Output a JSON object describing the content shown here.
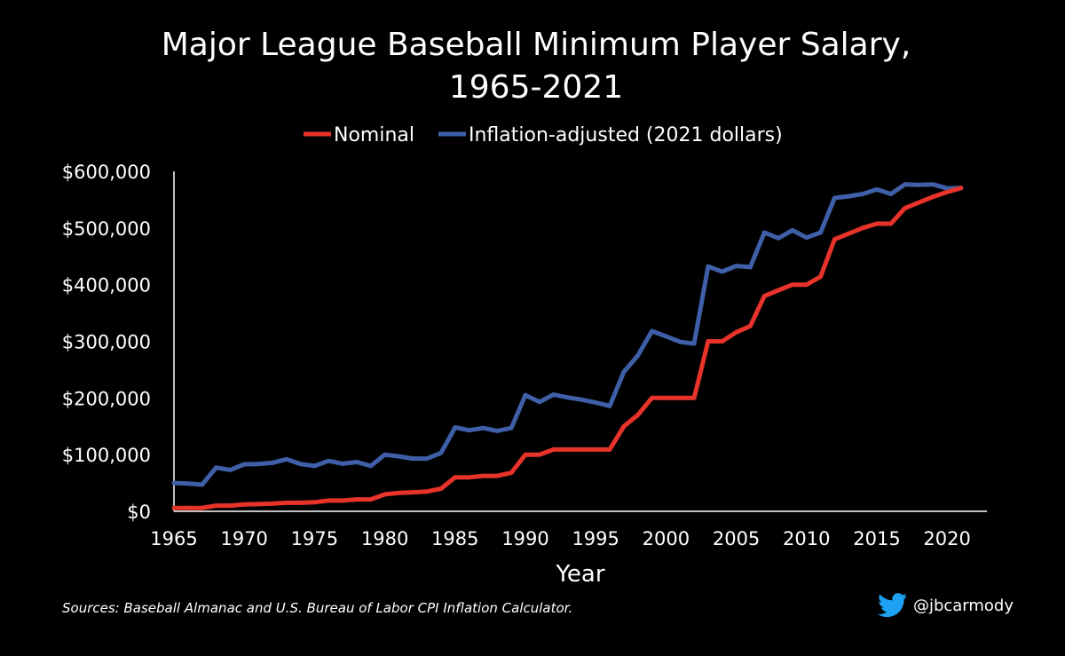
{
  "chart_data": {
    "type": "line",
    "title_line1": "Major League Baseball Minimum Player Salary,",
    "title_line2": "1965-2021",
    "xlabel": "Year",
    "ylabel": "",
    "xlim": [
      1965,
      2021
    ],
    "ylim": [
      0,
      600000
    ],
    "x_ticks": [
      1965,
      1970,
      1975,
      1980,
      1985,
      1990,
      1995,
      2000,
      2005,
      2010,
      2015,
      2020
    ],
    "y_ticks": [
      0,
      100000,
      200000,
      300000,
      400000,
      500000,
      600000
    ],
    "y_tick_labels": [
      "$0",
      "$100,000",
      "$200,000",
      "$300,000",
      "$400,000",
      "$500,000",
      "$600,000"
    ],
    "legend_position": "top-center",
    "grid": false,
    "x": [
      1965,
      1966,
      1967,
      1968,
      1969,
      1970,
      1971,
      1972,
      1973,
      1974,
      1975,
      1976,
      1977,
      1978,
      1979,
      1980,
      1981,
      1982,
      1983,
      1984,
      1985,
      1986,
      1987,
      1988,
      1989,
      1990,
      1991,
      1992,
      1993,
      1994,
      1995,
      1996,
      1997,
      1998,
      1999,
      2000,
      2001,
      2002,
      2003,
      2004,
      2005,
      2006,
      2007,
      2008,
      2009,
      2010,
      2011,
      2012,
      2013,
      2014,
      2015,
      2016,
      2017,
      2018,
      2019,
      2020,
      2021
    ],
    "series": [
      {
        "name": "Nominal",
        "color": "#e8332b",
        "values": [
          6000,
          6000,
          6000,
          10000,
          10000,
          12000,
          12750,
          13500,
          15000,
          15000,
          16000,
          19000,
          19000,
          21000,
          21000,
          30000,
          32500,
          33500,
          35000,
          40000,
          60000,
          60000,
          62500,
          62500,
          68000,
          100000,
          100000,
          109000,
          109000,
          109000,
          109000,
          109000,
          150000,
          170000,
          200000,
          200000,
          200000,
          200000,
          300000,
          300000,
          316000,
          327000,
          380000,
          390000,
          400000,
          400000,
          414000,
          480000,
          490000,
          500000,
          507500,
          507500,
          535000,
          545000,
          555000,
          563500,
          570500
        ]
      },
      {
        "name": "Inflation-adjusted (2021 dollars)",
        "color": "#3f5fa8",
        "values": [
          50000,
          49000,
          47000,
          77000,
          73000,
          83000,
          83500,
          85500,
          92000,
          83500,
          80000,
          89000,
          84000,
          87000,
          80000,
          100000,
          97000,
          93000,
          93000,
          103000,
          148000,
          143000,
          147000,
          142000,
          147000,
          205000,
          193000,
          206000,
          201000,
          197000,
          192000,
          186000,
          246000,
          275000,
          318000,
          309000,
          299000,
          296000,
          432000,
          423000,
          433000,
          431000,
          492000,
          482000,
          496000,
          483000,
          492000,
          553000,
          556000,
          560000,
          568000,
          560000,
          577000,
          576000,
          577000,
          570000,
          570500
        ]
      }
    ]
  },
  "footer": {
    "source": "Sources: Baseball Almanac and U.S. Bureau of Labor CPI Inflation Calculator.",
    "credit": "@jbcarmody"
  },
  "colors": {
    "background": "#000000",
    "text": "#ffffff",
    "twitter": "#1da1f2"
  }
}
